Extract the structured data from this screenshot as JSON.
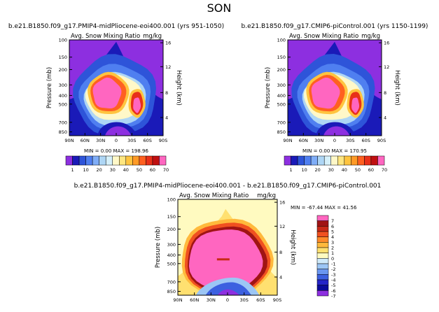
{
  "figure": {
    "main_title": "SON"
  },
  "colors": {
    "scale": [
      "#8d2fe0",
      "#1a1ab8",
      "#2e54d9",
      "#4f7ff0",
      "#7fadf7",
      "#aed6f5",
      "#d6f0fa",
      "#fff8c8",
      "#ffe680",
      "#ffc43f",
      "#ff9a26",
      "#ff6020",
      "#e83019",
      "#c01010",
      "#ff66c0"
    ],
    "diff_scale": [
      "#8d2fe0",
      "#0a0a9a",
      "#2424c8",
      "#3c60e0",
      "#6a96f0",
      "#9cc6f5",
      "#cfeafa",
      "#fffac0",
      "#ffe070",
      "#ffb93c",
      "#ff8a2a",
      "#f05020",
      "#c82a18",
      "#a01414",
      "#ff66c0"
    ]
  },
  "chart_data": [
    {
      "type": "heatmap",
      "title": "b.e21.B1850.f09_g17.PMIP4-midPliocene-eoi400.001 (yrs 951-1050)",
      "subtitle": "Avg. Snow Mixing Ratio",
      "units": "mg/kg",
      "xlabel": "",
      "ylabel": "Pressure (mb)",
      "ylabel_right": "Height (km)",
      "x_ticks": [
        "90N",
        "60N",
        "30N",
        "0",
        "30S",
        "60S",
        "90S"
      ],
      "y_ticks": [
        "100",
        "150",
        "200",
        "300",
        "400",
        "500",
        "700",
        "850"
      ],
      "y_right_ticks": [
        "16",
        "12",
        "8",
        "4"
      ],
      "stats": "MIN =    0.00   MAX = 198.96",
      "colorbar_labels": [
        "1",
        "10",
        "20",
        "30",
        "40",
        "50",
        "60",
        "70"
      ]
    },
    {
      "type": "heatmap",
      "title": "b.e21.B1850.f09_g17.CMIP6-piControl.001 (yrs 1150-1199)",
      "subtitle": "Avg. Snow Mixing Ratio",
      "units": "mg/kg",
      "xlabel": "",
      "ylabel": "Pressure (mb)",
      "ylabel_right": "Height (km)",
      "x_ticks": [
        "90N",
        "60N",
        "30N",
        "0",
        "30S",
        "60S",
        "90S"
      ],
      "y_ticks": [
        "100",
        "150",
        "200",
        "300",
        "400",
        "500",
        "700",
        "850"
      ],
      "y_right_ticks": [
        "16",
        "12",
        "8",
        "4"
      ],
      "stats": "MIN =    0.00   MAX = 170.95",
      "colorbar_labels": [
        "1",
        "10",
        "20",
        "30",
        "40",
        "50",
        "60",
        "70"
      ]
    },
    {
      "type": "heatmap",
      "title": "b.e21.B1850.f09_g17.PMIP4-midPliocene-eoi400.001  -  b.e21.B1850.f09_g17.CMIP6-piControl.001",
      "subtitle": "Avg. Snow Mixing Ratio",
      "units": "mg/kg",
      "xlabel": "",
      "ylabel": "Pressure (mb)",
      "ylabel_right": "Height (km)",
      "x_ticks": [
        "90N",
        "60N",
        "30N",
        "0",
        "30S",
        "60S",
        "90S"
      ],
      "y_ticks": [
        "100",
        "150",
        "200",
        "300",
        "400",
        "500",
        "700",
        "850"
      ],
      "y_right_ticks": [
        "16",
        "12",
        "8",
        "4"
      ],
      "stats": "MIN = -67.44   MAX =  41.56",
      "colorbar_labels": [
        "7",
        "6",
        "5",
        "4",
        "3",
        "2",
        "1",
        "0",
        "-1",
        "-2",
        "-3",
        "-4",
        "-5",
        "-6",
        "-7"
      ]
    }
  ]
}
